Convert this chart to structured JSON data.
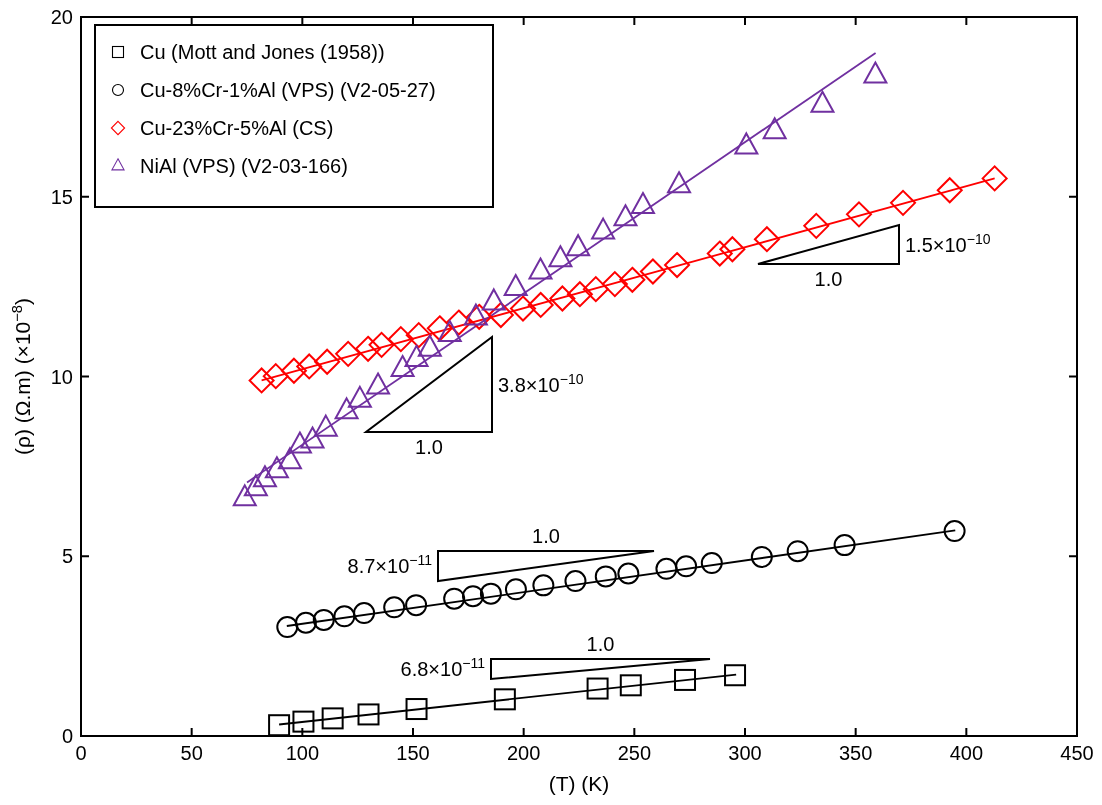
{
  "chart_data": {
    "type": "scatter",
    "xlabel": "(T) (K)",
    "ylabel": "(ρ) (Ω.m) (×10$^{−8}$)",
    "xlim": [
      0,
      450
    ],
    "xticks": [
      0,
      50,
      100,
      150,
      200,
      250,
      300,
      350,
      400,
      450
    ],
    "ylim": [
      0,
      20
    ],
    "yticks": [
      0,
      5,
      10,
      15,
      20
    ],
    "grid": false,
    "legend": "top left",
    "series": [
      {
        "name": "Cu (Mott and Jones (1958))",
        "marker": "square",
        "color": "#000000",
        "x": [
          89.5,
          100.5,
          113.7,
          129.9,
          151.6,
          191.5,
          233.4,
          248.4,
          272.9,
          295.5
        ],
        "values": [
          0.3,
          0.4,
          0.49,
          0.6,
          0.75,
          1.02,
          1.32,
          1.41,
          1.56,
          1.69
        ]
      },
      {
        "name": "Cu-8%Cr-1%Al (VPS) (V2-05-27)",
        "marker": "circle",
        "color": "#000000",
        "x": [
          93.2,
          101.6,
          109.7,
          119.0,
          127.9,
          141.5,
          151.4,
          168.6,
          177.1,
          185.2,
          196.5,
          208.9,
          223.4,
          237.1,
          247.3,
          264.5,
          273.4,
          285.0,
          307.6,
          323.8,
          345.0,
          394.7
        ],
        "values": [
          3.03,
          3.15,
          3.23,
          3.33,
          3.42,
          3.58,
          3.64,
          3.82,
          3.89,
          3.96,
          4.08,
          4.19,
          4.31,
          4.44,
          4.52,
          4.65,
          4.72,
          4.81,
          4.98,
          5.14,
          5.31,
          5.7
        ]
      },
      {
        "name": "Cu-23%Cr-5%Al (CS)",
        "marker": "diamond",
        "color": "#ff0000",
        "x": [
          81.6,
          88.0,
          96.2,
          103.1,
          111.2,
          120.7,
          129.7,
          135.8,
          144.5,
          152.6,
          162.1,
          170.7,
          179.9,
          189.7,
          199.7,
          207.7,
          217.5,
          225.4,
          232.6,
          241.2,
          249.1,
          258.4,
          269.3,
          288.6,
          294.3,
          309.9,
          332.2,
          351.5,
          371.4,
          392.5,
          412.8
        ],
        "values": [
          9.89,
          10.01,
          10.16,
          10.28,
          10.41,
          10.63,
          10.77,
          10.88,
          11.04,
          11.15,
          11.34,
          11.5,
          11.66,
          11.71,
          11.89,
          11.99,
          12.17,
          12.29,
          12.43,
          12.57,
          12.69,
          12.92,
          13.1,
          13.42,
          13.54,
          13.82,
          14.19,
          14.51,
          14.83,
          15.18,
          15.51
        ]
      },
      {
        "name": "NiAl (VPS) (V2-03-166)",
        "marker": "triangle",
        "color": "#7030a0",
        "x": [
          74.0,
          79.0,
          83.1,
          88.5,
          94.4,
          98.9,
          104.6,
          110.6,
          120.0,
          126.0,
          134.2,
          145.3,
          151.6,
          157.6,
          166.6,
          178.4,
          186.5,
          196.4,
          207.6,
          216.6,
          224.6,
          235.9,
          246.0,
          253.9,
          270.2,
          300.6,
          313.4,
          335.0,
          358.9
        ],
        "values": [
          6.61,
          6.89,
          7.14,
          7.39,
          7.64,
          8.08,
          8.22,
          8.55,
          9.03,
          9.35,
          9.72,
          10.21,
          10.49,
          10.77,
          11.18,
          11.64,
          12.06,
          12.46,
          12.92,
          13.26,
          13.57,
          14.03,
          14.4,
          14.74,
          15.32,
          16.4,
          16.82,
          17.56,
          18.37
        ]
      },
      {
        "type": "line",
        "color": "#000000",
        "x": [
          89.5,
          296
        ],
        "values": [
          0.32,
          1.71
        ]
      },
      {
        "type": "line",
        "color": "#000000",
        "x": [
          93,
          395
        ],
        "values": [
          3.06,
          5.72
        ]
      },
      {
        "type": "line",
        "color": "#ff0000",
        "x": [
          81.6,
          412.8
        ],
        "values": [
          9.89,
          15.51
        ]
      },
      {
        "type": "line",
        "color": "#7030a0",
        "x": [
          75,
          359
        ],
        "values": [
          7.05,
          19.0
        ]
      }
    ],
    "annotations": [
      "1.0",
      "3.8×10$^{−10}$",
      "1.0",
      "1.5×10$^{−10}$",
      "1.0",
      "8.7×10$^{−11}$",
      "1.0",
      "6.8×10$^{−11}$"
    ]
  }
}
